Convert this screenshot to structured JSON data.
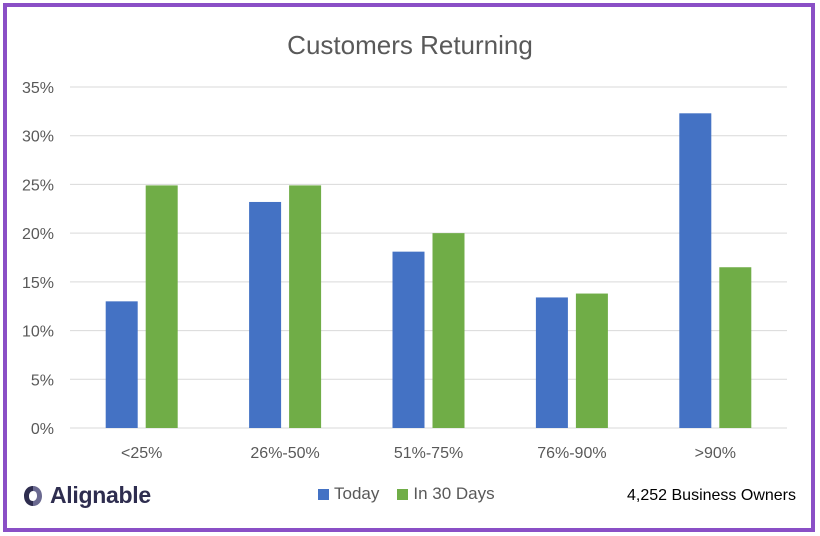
{
  "chart_data": {
    "type": "bar",
    "title": "Customers Returning",
    "categories": [
      "<25%",
      "26%-50%",
      "51%-75%",
      "76%-90%",
      ">90%"
    ],
    "series": [
      {
        "name": "Today",
        "color": "#4472c4",
        "values": [
          13,
          23.2,
          18.1,
          13.4,
          32.3
        ]
      },
      {
        "name": "In 30 Days",
        "color": "#70ad47",
        "values": [
          24.9,
          24.9,
          20,
          13.8,
          16.5
        ]
      }
    ],
    "ylim": [
      0,
      35
    ],
    "yticks": [
      0,
      5,
      10,
      15,
      20,
      25,
      30,
      35
    ],
    "ytick_labels": [
      "0%",
      "5%",
      "10%",
      "15%",
      "20%",
      "25%",
      "30%",
      "35%"
    ],
    "grid": true,
    "legend": "bottom"
  },
  "footer": {
    "brand": "Alignable",
    "source_note": "4,252 Business Owners"
  },
  "colors": {
    "border": "#8a4fc6",
    "grid": "#d9d9d9",
    "text": "#595959"
  }
}
